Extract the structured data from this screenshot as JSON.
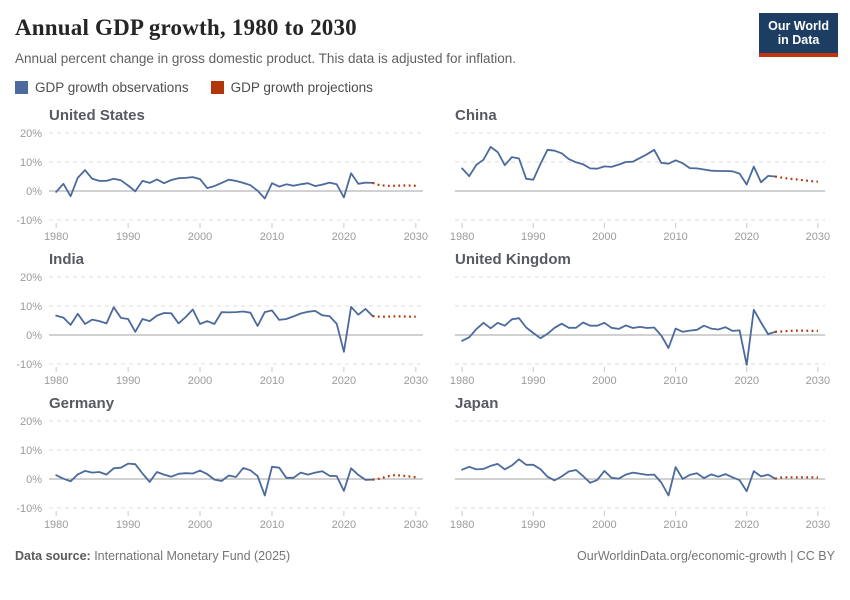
{
  "header": {
    "title": "Annual GDP growth, 1980 to 2030",
    "subtitle": "Annual percent change in gross domestic product. This data is adjusted for inflation.",
    "logo_line1": "Our World",
    "logo_line2": "in Data"
  },
  "legend": {
    "items": [
      {
        "label": "GDP growth observations",
        "color": "#4c6a9c"
      },
      {
        "label": "GDP growth projections",
        "color": "#b13507"
      }
    ]
  },
  "footer": {
    "source_label": "Data source:",
    "source_value": " International Monetary Fund (2025)",
    "right_text": "OurWorldinData.org/economic-growth | CC BY"
  },
  "chart_data": {
    "type": "line",
    "facets": "2 columns x 3 rows",
    "grid": "dashed horizontal gridlines, solid zero line",
    "legend_position": "top-left",
    "ylim": [
      -10,
      20
    ],
    "yticks": [
      {
        "v": 20,
        "label": "20%"
      },
      {
        "v": 10,
        "label": "10%"
      },
      {
        "v": 0,
        "label": "0%"
      },
      {
        "v": -10,
        "label": "-10%"
      }
    ],
    "xticks": [
      1980,
      1990,
      2000,
      2010,
      2020,
      2030
    ],
    "obs_start_year": 1980,
    "proj_start_year": 2024,
    "colors": {
      "observation": "#4c6a9c",
      "projection": "#b13507"
    },
    "panels": [
      {
        "title": "United States",
        "observations": [
          -0.3,
          2.5,
          -1.8,
          4.6,
          7.2,
          4.2,
          3.5,
          3.5,
          4.2,
          3.7,
          1.9,
          -0.1,
          3.5,
          2.8,
          4.0,
          2.7,
          3.8,
          4.4,
          4.5,
          4.8,
          4.1,
          1.0,
          1.7,
          2.8,
          3.9,
          3.5,
          2.8,
          2.0,
          0.1,
          -2.6,
          2.7,
          1.5,
          2.3,
          1.8,
          2.3,
          2.7,
          1.7,
          2.2,
          2.9,
          2.3,
          -2.2,
          6.1,
          2.5,
          2.9,
          2.8
        ],
        "projections": [
          2.8,
          2.0,
          1.8,
          1.8,
          1.9,
          1.9,
          1.8
        ]
      },
      {
        "title": "China",
        "observations": [
          7.8,
          5.1,
          9.0,
          10.8,
          15.2,
          13.4,
          8.9,
          11.7,
          11.2,
          4.2,
          3.9,
          9.3,
          14.2,
          13.9,
          13.0,
          11.0,
          9.9,
          9.2,
          7.8,
          7.7,
          8.5,
          8.3,
          9.1,
          10.0,
          10.1,
          11.4,
          12.7,
          14.2,
          9.7,
          9.4,
          10.6,
          9.6,
          7.9,
          7.8,
          7.4,
          7.0,
          6.9,
          6.9,
          6.8,
          6.0,
          2.2,
          8.4,
          3.0,
          5.2,
          5.0
        ],
        "projections": [
          5.0,
          4.6,
          4.2,
          4.0,
          3.7,
          3.4,
          3.2
        ]
      },
      {
        "title": "India",
        "observations": [
          6.7,
          6.0,
          3.5,
          7.3,
          3.8,
          5.3,
          4.8,
          4.0,
          9.6,
          5.9,
          5.5,
          1.1,
          5.5,
          4.8,
          6.7,
          7.6,
          7.5,
          4.0,
          6.2,
          8.8,
          3.8,
          4.8,
          3.8,
          7.9,
          7.8,
          7.9,
          8.1,
          7.7,
          3.1,
          7.9,
          8.5,
          5.2,
          5.5,
          6.4,
          7.4,
          8.0,
          8.3,
          6.8,
          6.5,
          3.9,
          -5.8,
          9.7,
          7.0,
          9.0,
          6.5
        ],
        "projections": [
          6.5,
          6.3,
          6.3,
          6.4,
          6.4,
          6.3,
          6.3
        ]
      },
      {
        "title": "United Kingdom",
        "observations": [
          -2.0,
          -0.8,
          2.0,
          4.2,
          2.3,
          4.2,
          3.2,
          5.4,
          5.8,
          2.6,
          0.7,
          -1.1,
          0.4,
          2.5,
          3.9,
          2.5,
          2.5,
          4.3,
          3.2,
          3.2,
          4.2,
          2.5,
          2.1,
          3.3,
          2.4,
          2.8,
          2.4,
          2.6,
          -0.2,
          -4.5,
          2.2,
          1.1,
          1.5,
          1.8,
          3.2,
          2.2,
          1.9,
          2.7,
          1.4,
          1.6,
          -10.3,
          8.7,
          4.3,
          0.3,
          1.1
        ],
        "projections": [
          1.1,
          1.2,
          1.4,
          1.5,
          1.5,
          1.4,
          1.4
        ]
      },
      {
        "title": "Germany",
        "observations": [
          1.3,
          0.1,
          -0.8,
          1.6,
          2.8,
          2.2,
          2.4,
          1.5,
          3.7,
          3.9,
          5.3,
          5.1,
          1.9,
          -1.0,
          2.4,
          1.5,
          0.8,
          1.8,
          2.0,
          1.9,
          2.9,
          1.7,
          -0.2,
          -0.7,
          1.2,
          0.7,
          3.8,
          3.0,
          1.0,
          -5.7,
          4.2,
          3.9,
          0.4,
          0.4,
          2.2,
          1.5,
          2.2,
          2.7,
          1.1,
          1.0,
          -4.1,
          3.7,
          1.4,
          -0.3,
          -0.2
        ],
        "projections": [
          -0.2,
          0.1,
          0.9,
          1.3,
          1.2,
          0.9,
          0.6
        ]
      },
      {
        "title": "Japan",
        "observations": [
          3.2,
          4.2,
          3.3,
          3.5,
          4.5,
          5.2,
          3.3,
          4.7,
          6.8,
          4.9,
          4.9,
          3.4,
          0.8,
          -0.5,
          0.9,
          2.6,
          3.1,
          1.0,
          -1.3,
          -0.3,
          2.8,
          0.4,
          0.1,
          1.5,
          2.2,
          1.8,
          1.4,
          1.5,
          -1.2,
          -5.7,
          4.1,
          0.0,
          1.4,
          2.0,
          0.3,
          1.6,
          0.8,
          1.7,
          0.6,
          -0.4,
          -4.2,
          2.7,
          0.9,
          1.5,
          0.1
        ],
        "projections": [
          0.1,
          0.6,
          0.6,
          0.6,
          0.6,
          0.6,
          0.5
        ]
      }
    ]
  }
}
